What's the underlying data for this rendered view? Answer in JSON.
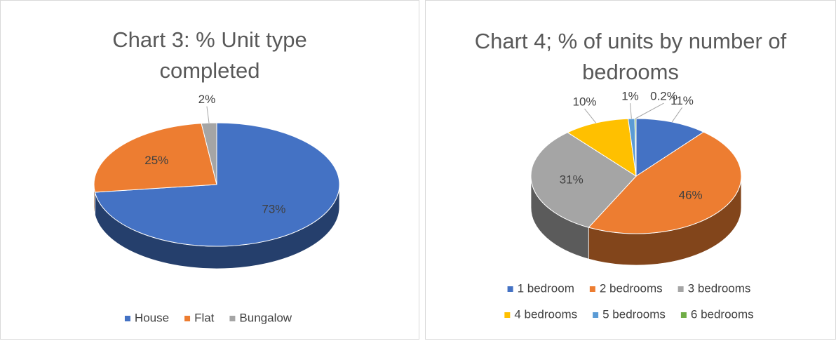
{
  "chart_data": [
    {
      "type": "pie",
      "title": "Chart 3: % Unit type completed",
      "categories": [
        "House",
        "Flat",
        "Bungalow"
      ],
      "values": [
        73,
        25,
        2
      ],
      "value_labels": [
        "73%",
        "25%",
        "2%"
      ],
      "colors": [
        "#4472c4",
        "#ed7d31",
        "#a5a5a5"
      ],
      "legend": "bottom"
    },
    {
      "type": "pie",
      "title": "Chart 4; % of units by number of bedrooms",
      "categories": [
        "1 bedroom",
        "2 bedrooms",
        "3 bedrooms",
        "4 bedrooms",
        "5 bedrooms",
        "6 bedrooms"
      ],
      "values": [
        11,
        46,
        31,
        10,
        1,
        0.2
      ],
      "value_labels": [
        "11%",
        "46%",
        "31%",
        "10%",
        "1%",
        "0.2%"
      ],
      "colors": [
        "#4472c4",
        "#ed7d31",
        "#a5a5a5",
        "#ffc000",
        "#5b9bd5",
        "#70ad47"
      ],
      "legend": "bottom"
    }
  ]
}
